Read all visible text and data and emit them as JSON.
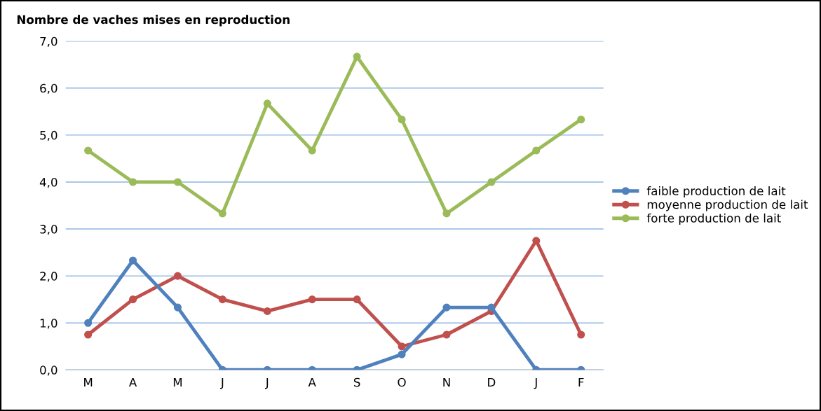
{
  "chart_data": {
    "type": "line",
    "title": "Nombre de vaches mises en reproduction",
    "categories": [
      "M",
      "A",
      "M",
      "J",
      "J",
      "A",
      "S",
      "O",
      "N",
      "D",
      "J",
      "F"
    ],
    "series": [
      {
        "name": "faible production de lait",
        "color": "#4f81bd",
        "values": [
          1.0,
          2.33,
          1.33,
          0,
          0,
          0,
          0,
          0.33,
          1.33,
          1.33,
          0,
          0
        ]
      },
      {
        "name": "moyenne production de lait",
        "color": "#c0504d",
        "values": [
          0.75,
          1.5,
          2.0,
          1.5,
          1.25,
          1.5,
          1.5,
          0.5,
          0.75,
          1.25,
          2.75,
          0.75
        ]
      },
      {
        "name": "forte production de lait",
        "color": "#9bbb59",
        "values": [
          4.67,
          4.0,
          4.0,
          3.33,
          5.67,
          4.67,
          6.67,
          5.33,
          3.33,
          4.0,
          4.67,
          5.33
        ]
      }
    ],
    "ylim": [
      0,
      7
    ],
    "yticks": [
      {
        "value": 0,
        "label": "0,0"
      },
      {
        "value": 1,
        "label": "1,0"
      },
      {
        "value": 2,
        "label": "2,0"
      },
      {
        "value": 3,
        "label": "3,0"
      },
      {
        "value": 4,
        "label": "4,0"
      },
      {
        "value": 5,
        "label": "5,0"
      },
      {
        "value": 6,
        "label": "6,0"
      },
      {
        "value": 7,
        "label": "7,0"
      }
    ],
    "grid": "y",
    "legend": "right",
    "marker": "circle",
    "line_style": "solid"
  }
}
